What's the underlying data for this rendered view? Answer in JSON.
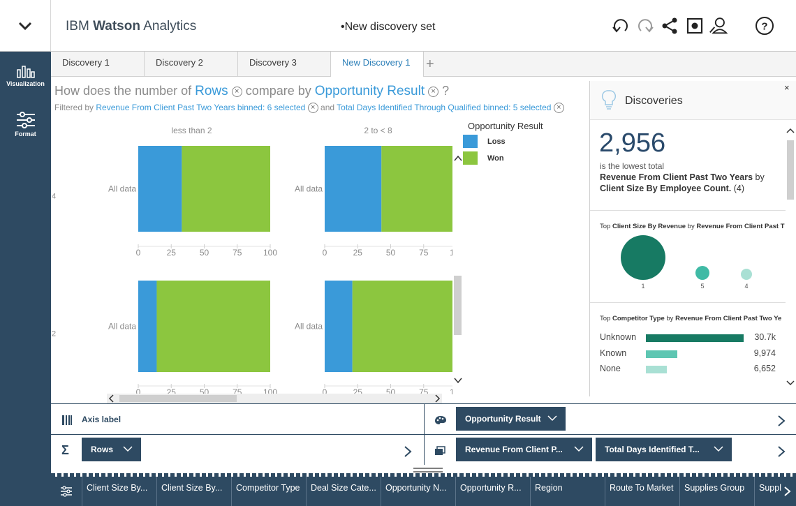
{
  "header": {
    "brand_prefix": "IBM",
    "brand_bold": "Watson",
    "brand_suffix": "Analytics",
    "document_title": "•New discovery set",
    "icons": [
      "undo-icon",
      "redo-icon",
      "share-icon",
      "snapshot-icon",
      "user-icon",
      "help-icon"
    ]
  },
  "rail": {
    "visualization_label": "Visualization",
    "format_label": "Format"
  },
  "tabs": [
    {
      "label": "Discovery 1"
    },
    {
      "label": "Discovery 2"
    },
    {
      "label": "Discovery 3"
    },
    {
      "label": "New Discovery 1"
    }
  ],
  "tab_add": "+",
  "question": {
    "prefix": "How does the number of",
    "measure": "Rows",
    "middle": "compare by",
    "dimension": "Opportunity Result",
    "suffix": "?"
  },
  "filters": {
    "prefix": "Filtered by",
    "filter1": "Revenue From Client Past Two Years binned: 6 selected",
    "joiner": "and",
    "filter2": "Total Days Identified Through Qualified binned: 5 selected"
  },
  "chart_data": {
    "type": "bar",
    "orientation": "horizontal-stacked-percent",
    "column_headers": [
      "less than 2",
      "2 to < 8"
    ],
    "row_labels": [
      "4",
      "2"
    ],
    "category_label": "All data",
    "x_ticks": [
      0,
      25,
      50,
      75,
      100
    ],
    "xlim": [
      0,
      100
    ],
    "legend_title": "Opportunity Result",
    "series_colors": {
      "Loss": "#3a9ad9",
      "Won": "#8cc63f"
    },
    "panels": [
      {
        "row": "4",
        "column": "less than 2",
        "Loss": 33,
        "Won": 67
      },
      {
        "row": "4",
        "column": "2 to < 8",
        "Loss": 43,
        "Won": 57
      },
      {
        "row": "2",
        "column": "less than 2",
        "Loss": 14,
        "Won": 86
      },
      {
        "row": "2",
        "column": "2 to < 8",
        "Loss": 21,
        "Won": 79
      }
    ]
  },
  "legend": {
    "title": "Opportunity Result",
    "items": [
      {
        "label": "Loss",
        "color": "#3a9ad9"
      },
      {
        "label": "Won",
        "color": "#8cc63f"
      }
    ]
  },
  "discoveries": {
    "title": "Discoveries",
    "close": "×",
    "big_number": "2,956",
    "big_sub": "is the lowest total",
    "big_desc_bold": "Revenue From Client Past Two Years",
    "big_desc_mid": "by",
    "big_desc_bold2": "Client Size By Employee Count.",
    "big_desc_tail": "(4)",
    "bubble_title_a": "Top",
    "bubble_title_b": "Client Size By Revenue",
    "bubble_title_c": "by",
    "bubble_title_d": "Revenue From Client Past T",
    "bubbles": [
      {
        "label": "1",
        "value": 1.0,
        "color": "#177a63"
      },
      {
        "label": "5",
        "value": 0.3,
        "color": "#3fbaa5"
      },
      {
        "label": "4",
        "value": 0.22,
        "color": "#a9e0d4"
      }
    ],
    "bars_title_a": "Top",
    "bars_title_b": "Competitor Type",
    "bars_title_c": "by",
    "bars_title_d": "Revenue From Client Past Two Ye",
    "bars": [
      {
        "label": "Unknown",
        "value": "30.7k",
        "fraction": 1.0,
        "color": "#177a63"
      },
      {
        "label": "Known",
        "value": "9,974",
        "fraction": 0.325,
        "color": "#5ec6b2"
      },
      {
        "label": "None",
        "value": "6,652",
        "fraction": 0.217,
        "color": "#a9e0d4"
      }
    ]
  },
  "slots": {
    "axis_label": "Axis label",
    "color_pill": "Opportunity Result",
    "measure_pill": "Rows",
    "group_pill_1": "Revenue From Client P...",
    "group_pill_2": "Total Days Identified T..."
  },
  "columns_bar": [
    "Client Size By...",
    "Client Size By...",
    "Competitor Type",
    "Deal Size Cate...",
    "Opportunity N...",
    "Opportunity R...",
    "Region",
    "Route To Market",
    "Supplies Group",
    "Suppl"
  ]
}
